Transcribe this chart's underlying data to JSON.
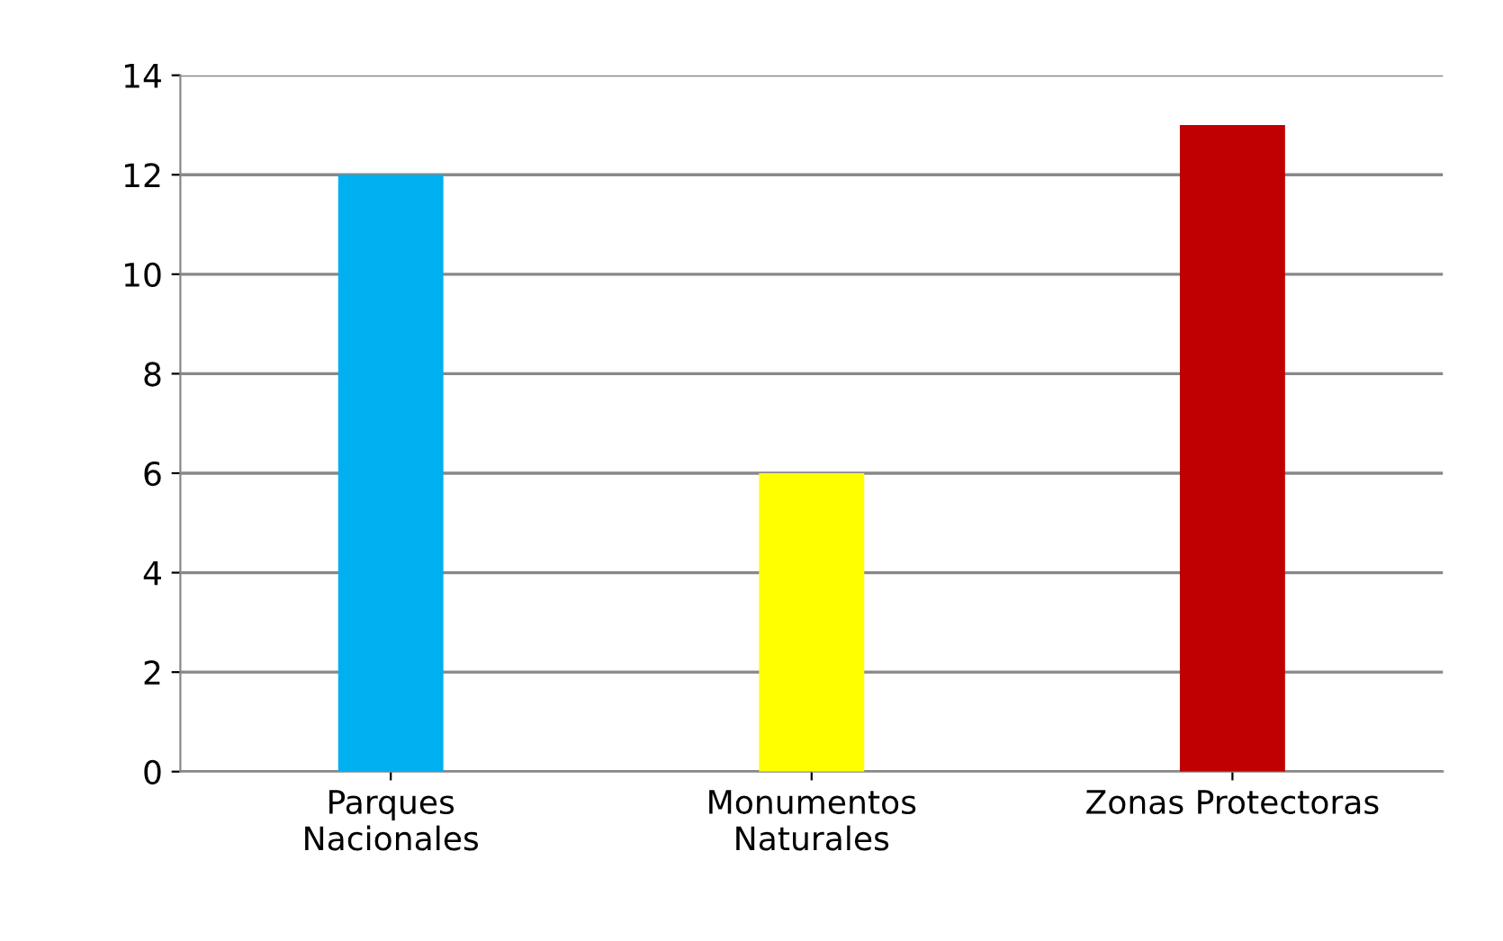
{
  "chart_data": {
    "type": "bar",
    "categories": [
      "Parques\nNacionales",
      "Monumentos\nNaturales",
      "Zonas Protectoras"
    ],
    "values": [
      12,
      6,
      13
    ],
    "colors": [
      "#00b0f0",
      "#ffff00",
      "#c00000"
    ],
    "ylim": [
      0,
      14
    ],
    "yticks": [
      0,
      2,
      4,
      6,
      8,
      10,
      12,
      14
    ],
    "grid": "y",
    "legend": false
  }
}
